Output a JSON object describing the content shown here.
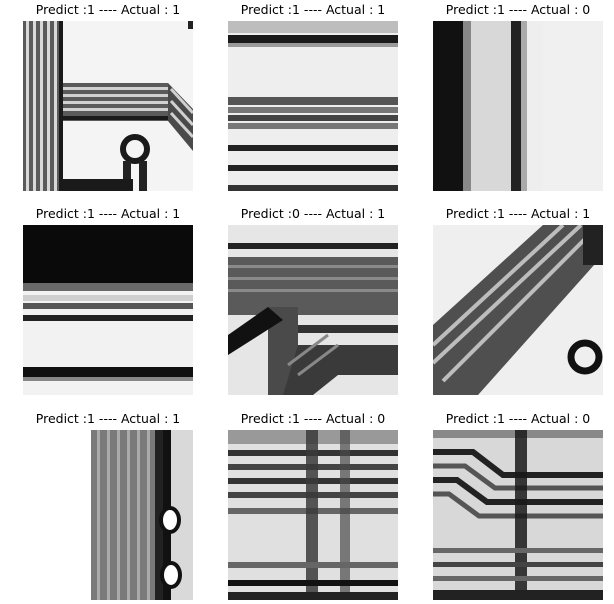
{
  "figure": {
    "panels": [
      {
        "title": "Predict :1 ---- Actual : 1",
        "predicted": 1,
        "actual": 1
      },
      {
        "title": "Predict :1 ---- Actual : 1",
        "predicted": 1,
        "actual": 1
      },
      {
        "title": "Predict :1 ---- Actual : 0",
        "predicted": 1,
        "actual": 0
      },
      {
        "title": "Predict :1 ---- Actual : 1",
        "predicted": 1,
        "actual": 1
      },
      {
        "title": "Predict :0 ---- Actual : 1",
        "predicted": 0,
        "actual": 1
      },
      {
        "title": "Predict :1 ---- Actual : 1",
        "predicted": 1,
        "actual": 1
      },
      {
        "title": "Predict :1 ---- Actual : 1",
        "predicted": 1,
        "actual": 1
      },
      {
        "title": "Predict :1 ---- Actual : 0",
        "predicted": 1,
        "actual": 0
      },
      {
        "title": "Predict :1 ---- Actual : 0",
        "predicted": 1,
        "actual": 0
      }
    ]
  }
}
